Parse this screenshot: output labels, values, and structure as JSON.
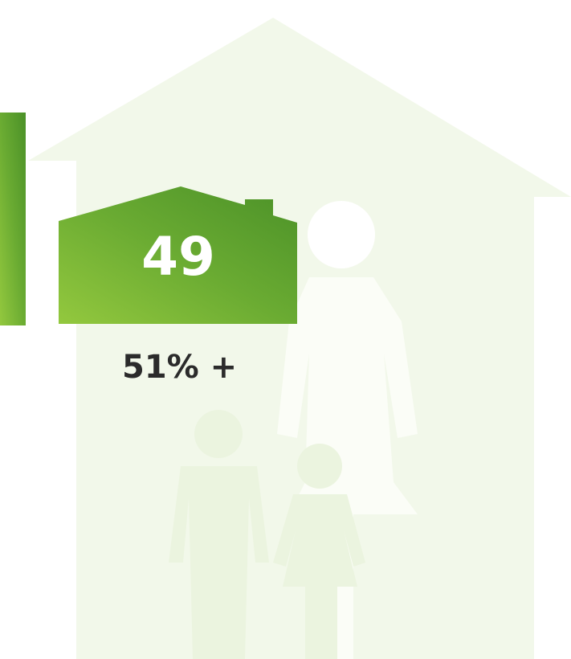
{
  "tile": {
    "number": "49",
    "label": "51% +"
  }
}
